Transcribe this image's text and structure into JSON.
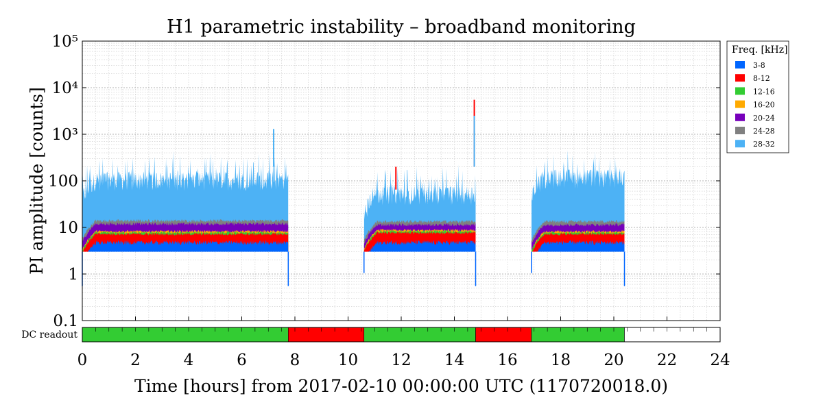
{
  "chart_data": {
    "type": "area",
    "title": "H1 parametric instability – broadband monitoring",
    "xlabel": "Time [hours] from 2017-02-10 00:00:00 UTC (1170720018.0)",
    "ylabel": "PI amplitude [counts]",
    "y_scale": "log",
    "xlim": [
      0,
      24
    ],
    "ylim": [
      0.1,
      100000
    ],
    "x_ticks": [
      0,
      2,
      4,
      6,
      8,
      10,
      12,
      14,
      16,
      18,
      20,
      22,
      24
    ],
    "y_tick_labels": [
      "0.1",
      "1",
      "10",
      "100",
      "10³",
      "10⁴",
      "10⁵"
    ],
    "grid": true,
    "legend_title": "Freq. [kHz]",
    "legend_position": "right",
    "series": [
      {
        "name": "3-8",
        "color": "#0066ff"
      },
      {
        "name": "8-12",
        "color": "#ff0000"
      },
      {
        "name": "12-16",
        "color": "#33cc33"
      },
      {
        "name": "16-20",
        "color": "#ffaa00"
      },
      {
        "name": "20-24",
        "color": "#7700bb"
      },
      {
        "name": "24-28",
        "color": "#808080"
      },
      {
        "name": "28-32",
        "color": "#4db2f5"
      }
    ],
    "locked_segments": [
      {
        "start": 0.0,
        "end": 7.75
      },
      {
        "start": 10.6,
        "end": 14.8
      },
      {
        "start": 16.9,
        "end": 20.4
      }
    ],
    "band_levels": {
      "series_order": [
        "28-32",
        "24-28",
        "20-24",
        "16-20",
        "12-16",
        "8-12",
        "3-8"
      ],
      "segment_1": {
        "28-32": 90,
        "24-28": 13.5,
        "20-24": 11.5,
        "16-20": 8,
        "12-16": 7.5,
        "8-12": 7,
        "3-8": 4.5
      },
      "segment_2": {
        "28-32": 45,
        "24-28": 13,
        "20-24": 11,
        "16-20": 8.5,
        "12-16": 8,
        "8-12": 7.5,
        "3-8": 4.5
      },
      "segment_3": {
        "28-32": 100,
        "24-28": 13,
        "20-24": 11,
        "16-20": 8,
        "12-16": 7.5,
        "8-12": 7,
        "3-8": 4.5
      }
    },
    "peaks": [
      {
        "series": "28-32",
        "x": 7.2,
        "y": 1300
      },
      {
        "series": "8-12",
        "x": 14.75,
        "y": 5500
      },
      {
        "series": "28-32",
        "x": 14.75,
        "y": 2500
      },
      {
        "series": "8-12",
        "x": 11.8,
        "y": 65
      }
    ],
    "dc_readout": {
      "label": "DC readout",
      "xlim": [
        0,
        24
      ],
      "segments": [
        {
          "start": 0.0,
          "end": 7.75,
          "state": "on"
        },
        {
          "start": 7.75,
          "end": 10.6,
          "state": "off"
        },
        {
          "start": 10.6,
          "end": 14.8,
          "state": "on"
        },
        {
          "start": 14.8,
          "end": 16.9,
          "state": "off"
        },
        {
          "start": 16.9,
          "end": 20.4,
          "state": "on"
        },
        {
          "start": 20.4,
          "end": 24.0,
          "state": "none"
        }
      ],
      "colors": {
        "on": "#33cc33",
        "off": "#ff0000",
        "none": "#ffffff"
      }
    }
  }
}
